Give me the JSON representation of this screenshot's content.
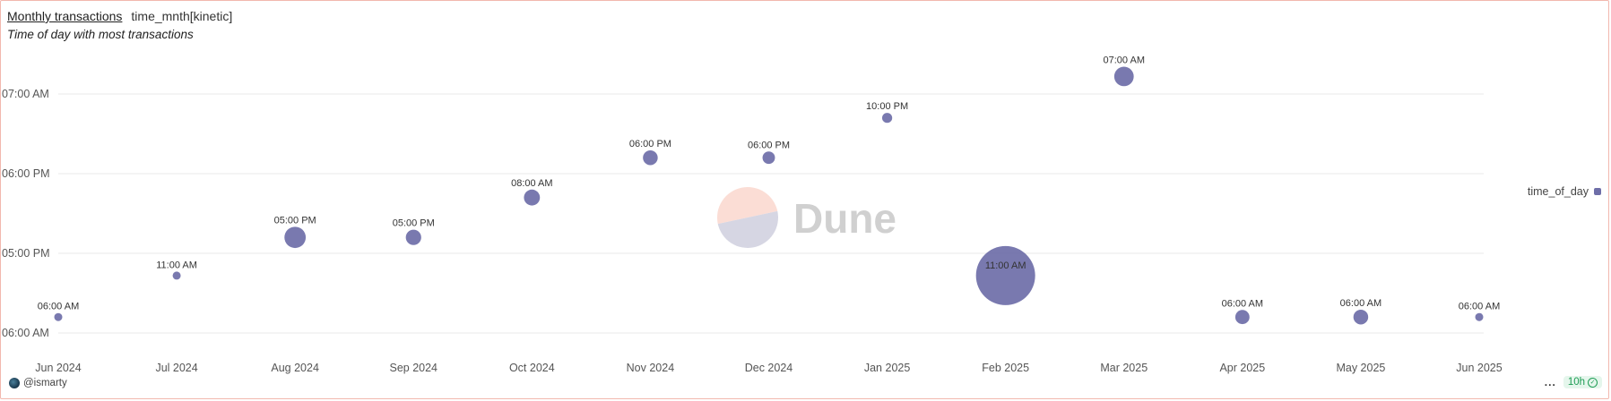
{
  "header": {
    "title": "Monthly transactions",
    "query_name": "time_mnth[kinetic]",
    "subtitle": "Time of day with most transactions"
  },
  "watermark": {
    "text": "Dune",
    "colors": {
      "top": "#fbddd5",
      "bottom": "#d6d6e3"
    }
  },
  "legend": {
    "label": "time_of_day",
    "color": "#6e6ea8"
  },
  "footer": {
    "user": "@ismarty",
    "more": "...",
    "refresh": "10h"
  },
  "colors": {
    "bubble": "#6e6ea8",
    "grid": "#e8e8e8",
    "frame": "#f2b8ae"
  },
  "chart_data": {
    "type": "scatter",
    "title": "Time of day with most transactions",
    "legend": [
      "time_of_day"
    ],
    "legend_position": "right",
    "grid": true,
    "x_ticks": [
      "Jun 2024",
      "Jul 2024",
      "Aug 2024",
      "Sep 2024",
      "Oct 2024",
      "Nov 2024",
      "Dec 2024",
      "Jan 2025",
      "Feb 2025",
      "Mar 2025",
      "Apr 2025",
      "May 2025",
      "Jun 2025"
    ],
    "y_ticks": [
      {
        "value": 0,
        "label": "06:00 AM"
      },
      {
        "value": 1,
        "label": "05:00 PM"
      },
      {
        "value": 2,
        "label": "06:00 PM"
      },
      {
        "value": 3,
        "label": "07:00 AM"
      }
    ],
    "ylim": [
      0,
      3
    ],
    "points": [
      {
        "x": "Jun 2024",
        "y": 0.2,
        "label": "06:00 AM",
        "size": 0.08
      },
      {
        "x": "Jul 2024",
        "y": 0.72,
        "label": "11:00 AM",
        "size": 0.08
      },
      {
        "x": "Aug 2024",
        "y": 1.2,
        "label": "05:00 PM",
        "size": 0.36
      },
      {
        "x": "Sep 2024",
        "y": 1.2,
        "label": "05:00 PM",
        "size": 0.26
      },
      {
        "x": "Oct 2024",
        "y": 1.7,
        "label": "08:00 AM",
        "size": 0.27
      },
      {
        "x": "Nov 2024",
        "y": 2.2,
        "label": "06:00 PM",
        "size": 0.25
      },
      {
        "x": "Dec 2024",
        "y": 2.2,
        "label": "06:00 PM",
        "size": 0.21
      },
      {
        "x": "Jan 2025",
        "y": 2.7,
        "label": "10:00 PM",
        "size": 0.17
      },
      {
        "x": "Feb 2025",
        "y": 0.72,
        "label": "11:00 AM",
        "size": 1.0
      },
      {
        "x": "Mar 2025",
        "y": 3.22,
        "label": "07:00 AM",
        "size": 0.33
      },
      {
        "x": "Apr 2025",
        "y": 0.2,
        "label": "06:00 AM",
        "size": 0.24
      },
      {
        "x": "May 2025",
        "y": 0.2,
        "label": "06:00 AM",
        "size": 0.25
      },
      {
        "x": "Jun 2025",
        "y": 0.2,
        "label": "06:00 AM",
        "size": 0.1
      }
    ]
  }
}
